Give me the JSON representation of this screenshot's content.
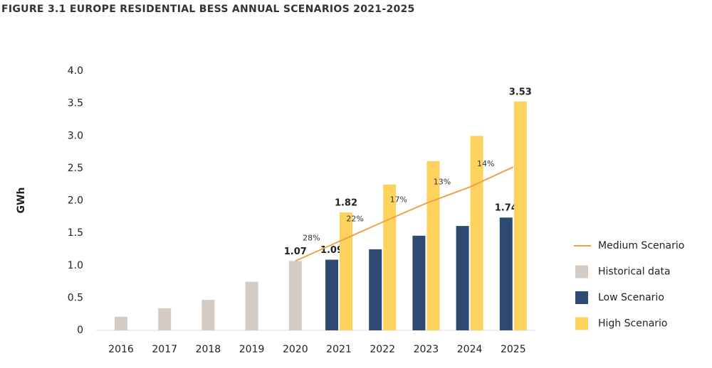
{
  "chart_data": {
    "type": "bar",
    "title": "FIGURE 3.1 EUROPE RESIDENTIAL BESS ANNUAL SCENARIOS 2021-2025",
    "y_label": "GWh",
    "categories": [
      "2016",
      "2017",
      "2018",
      "2019",
      "2020",
      "2021",
      "2022",
      "2023",
      "2024",
      "2025"
    ],
    "ylim": [
      0,
      4
    ],
    "yticks": [
      0,
      0.5,
      {
        "value": 1,
        "label": "1.0"
      },
      1.5,
      {
        "value": 2,
        "label": "2.0"
      },
      2.5,
      {
        "value": 3,
        "label": "3.0"
      },
      3.5,
      {
        "value": 4,
        "label": "4.0"
      }
    ],
    "series": [
      {
        "name": "Medium Scenario",
        "type": "line",
        "color": "#f0a04b",
        "values": [
          null,
          null,
          null,
          null,
          1.07,
          1.37,
          1.67,
          1.96,
          2.21,
          2.52
        ],
        "growth_labels": [
          null,
          null,
          null,
          null,
          null,
          "28%",
          "22%",
          "17%",
          "13%",
          "14%"
        ]
      },
      {
        "name": "Historical data",
        "type": "bar",
        "color": "#d3cbc4",
        "values": [
          0.21,
          0.34,
          0.47,
          0.75,
          1.07,
          null,
          null,
          null,
          null,
          null
        ],
        "value_labels": [
          null,
          null,
          null,
          null,
          "1.07",
          null,
          null,
          null,
          null,
          null
        ]
      },
      {
        "name": "Low Scenario",
        "type": "bar",
        "color": "#2e4a72",
        "values": [
          null,
          null,
          null,
          null,
          null,
          1.09,
          1.25,
          1.46,
          1.61,
          1.74
        ],
        "value_labels": [
          null,
          null,
          null,
          null,
          null,
          "1.09",
          null,
          null,
          null,
          "1.74"
        ]
      },
      {
        "name": "High Scenario",
        "type": "bar",
        "color": "#fdd35e",
        "values": [
          null,
          null,
          null,
          null,
          null,
          1.82,
          2.25,
          2.61,
          3.0,
          3.53
        ],
        "value_labels": [
          null,
          null,
          null,
          null,
          null,
          "1.82",
          null,
          null,
          null,
          "3.53"
        ]
      }
    ]
  }
}
